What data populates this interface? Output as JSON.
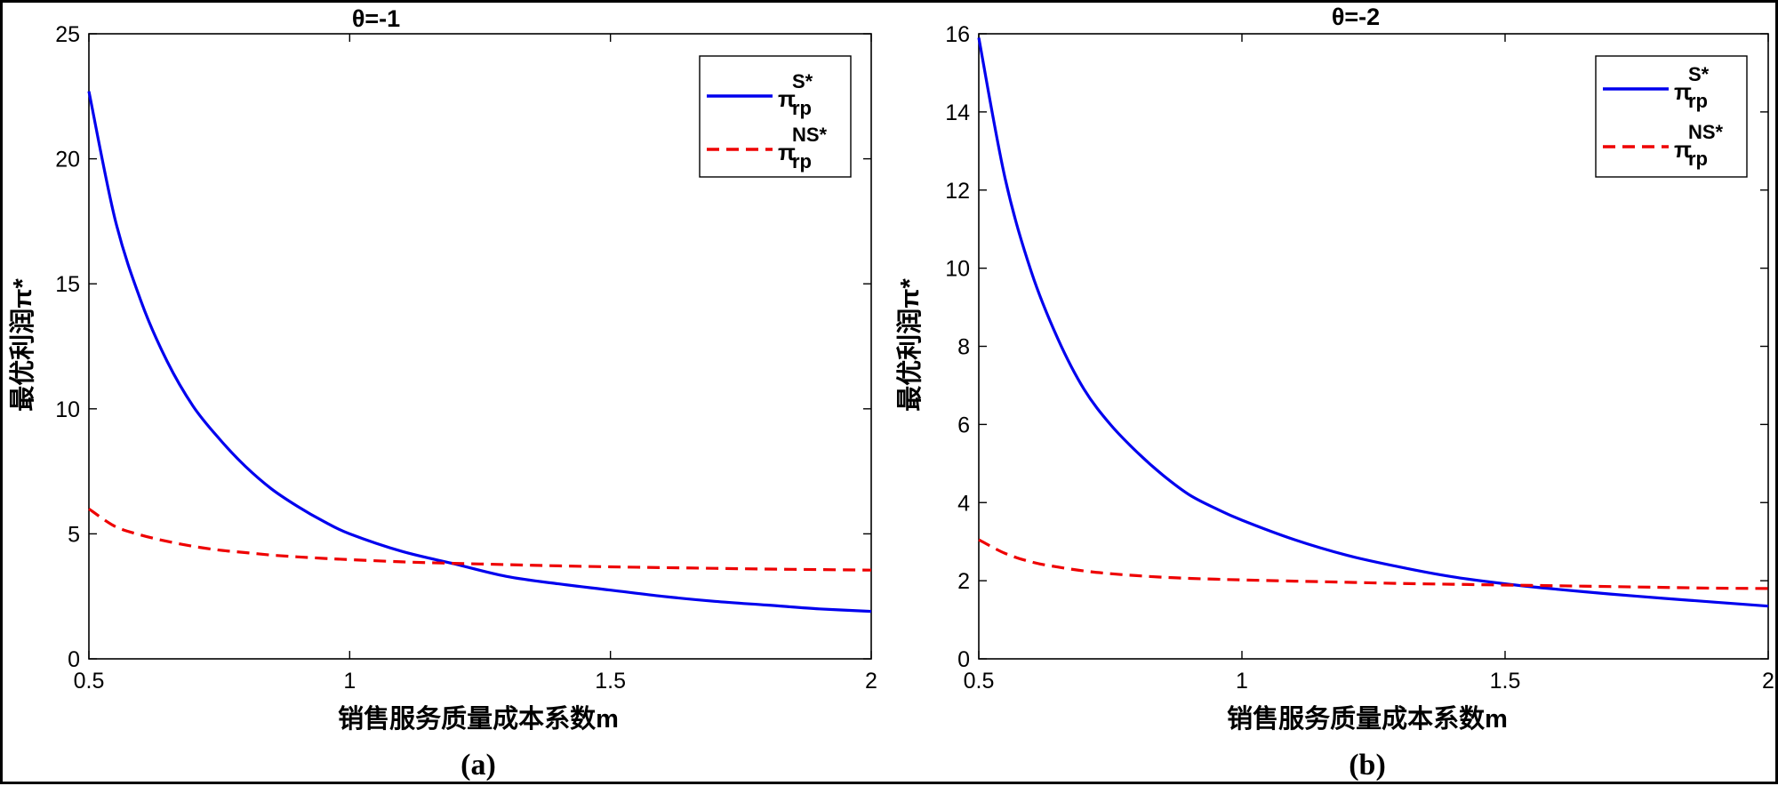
{
  "chart_data": [
    {
      "type": "line",
      "panel": "(a)",
      "title": "θ=-1",
      "xlabel": "销售服务质量成本系数m",
      "ylabel": "最优利润π*",
      "xlim": [
        0.5,
        2
      ],
      "ylim": [
        0,
        25
      ],
      "xticks": [
        "0.5",
        "1",
        "1.5",
        "2"
      ],
      "yticks": [
        "0",
        "5",
        "10",
        "15",
        "20",
        "25"
      ],
      "grid": false,
      "legend_position": "top-right",
      "x": [
        0.5,
        0.55,
        0.6,
        0.65,
        0.7,
        0.75,
        0.8,
        0.85,
        0.9,
        0.95,
        1.0,
        1.1,
        1.2,
        1.3,
        1.4,
        1.5,
        1.6,
        1.7,
        1.8,
        1.9,
        2.0
      ],
      "series": [
        {
          "name": "π_rp^S*",
          "color": "#0000ee",
          "style": "solid",
          "values": [
            22.7,
            17.6,
            14.3,
            11.9,
            10.1,
            8.8,
            7.7,
            6.8,
            6.1,
            5.5,
            5.0,
            4.3,
            3.8,
            3.3,
            3.0,
            2.75,
            2.5,
            2.3,
            2.15,
            2.0,
            1.9
          ]
        },
        {
          "name": "π_rp^NS*",
          "color": "#ee0000",
          "style": "dashed",
          "values": [
            6.0,
            5.3,
            4.95,
            4.7,
            4.5,
            4.35,
            4.25,
            4.15,
            4.08,
            4.02,
            3.97,
            3.88,
            3.82,
            3.77,
            3.72,
            3.68,
            3.65,
            3.62,
            3.59,
            3.57,
            3.55
          ]
        }
      ]
    },
    {
      "type": "line",
      "panel": "(b)",
      "title": "θ=-2",
      "xlabel": "销售服务质量成本系数m",
      "ylabel": "最优利润π*",
      "xlim": [
        0.5,
        2
      ],
      "ylim": [
        0,
        16
      ],
      "xticks": [
        "0.5",
        "1",
        "1.5",
        "2"
      ],
      "yticks": [
        "0",
        "2",
        "4",
        "6",
        "8",
        "10",
        "12",
        "14",
        "16"
      ],
      "grid": false,
      "legend_position": "top-right",
      "x": [
        0.5,
        0.55,
        0.6,
        0.65,
        0.7,
        0.75,
        0.8,
        0.85,
        0.9,
        0.95,
        1.0,
        1.1,
        1.2,
        1.3,
        1.4,
        1.5,
        1.6,
        1.7,
        1.8,
        1.9,
        2.0
      ],
      "series": [
        {
          "name": "π_rp^S*",
          "color": "#0000ee",
          "style": "solid",
          "values": [
            15.9,
            12.3,
            9.9,
            8.2,
            6.9,
            6.0,
            5.3,
            4.7,
            4.2,
            3.85,
            3.55,
            3.05,
            2.65,
            2.35,
            2.1,
            1.92,
            1.78,
            1.66,
            1.55,
            1.45,
            1.35
          ]
        },
        {
          "name": "π_rp^NS*",
          "color": "#ee0000",
          "style": "dashed",
          "values": [
            3.05,
            2.7,
            2.48,
            2.35,
            2.25,
            2.18,
            2.13,
            2.09,
            2.06,
            2.04,
            2.02,
            1.99,
            1.96,
            1.93,
            1.91,
            1.89,
            1.87,
            1.85,
            1.83,
            1.81,
            1.8
          ]
        }
      ]
    }
  ],
  "legend": {
    "pi": "π",
    "sup_s": "S*",
    "sup_ns": "NS*",
    "sub": "rp"
  }
}
